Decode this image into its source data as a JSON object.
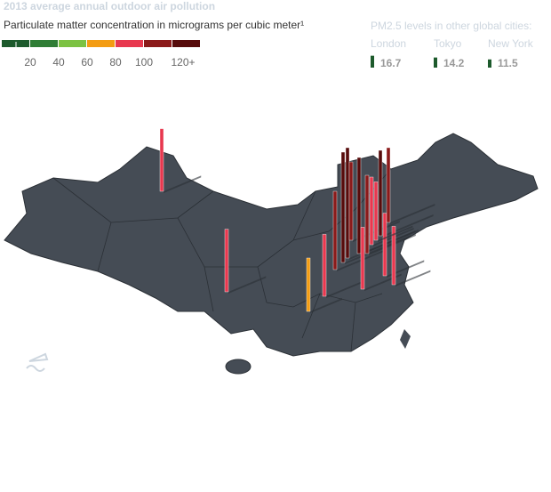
{
  "title": "2013 average annual outdoor air pollution",
  "subtitle": "Particulate matter concentration in micrograms per cubic meter¹",
  "legend": {
    "colors": [
      "#1d5a2c",
      "#2f7d35",
      "#7cc242",
      "#f39c12",
      "#e8384f",
      "#8b1a1a",
      "#560b0b"
    ],
    "ticks": [
      20,
      40,
      60,
      80,
      100,
      {
        "value": 120,
        "label": "120+"
      }
    ]
  },
  "other_cities": {
    "heading": "PM2.5 levels in other global cities:",
    "cities": [
      {
        "name": "London",
        "value": 16.7
      },
      {
        "name": "Tokyo",
        "value": 14.2
      },
      {
        "name": "New York",
        "value": 11.5
      }
    ]
  },
  "map_bars": [
    88,
    88,
    75,
    87,
    110,
    155,
    155,
    110,
    135,
    87,
    110,
    95,
    120,
    88,
    82,
    82,
    105
  ]
}
